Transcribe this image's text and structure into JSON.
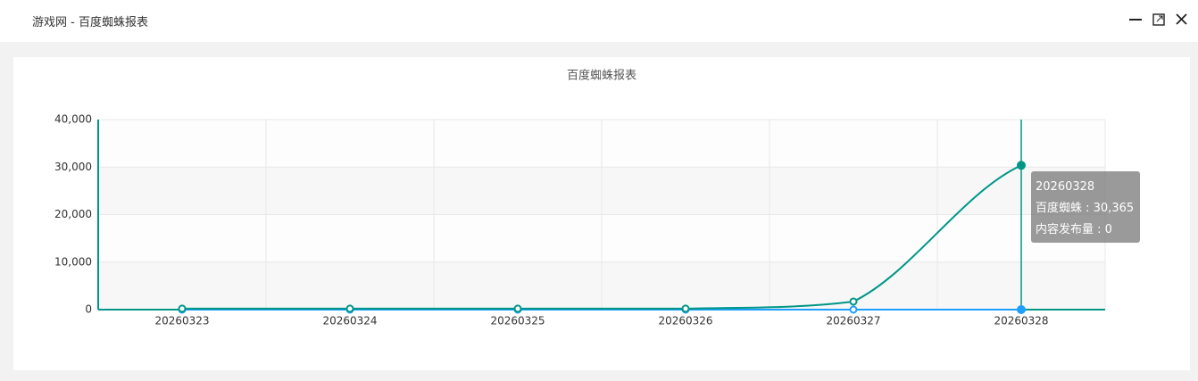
{
  "window": {
    "title": "游戏网 - 百度蜘蛛报表"
  },
  "chart_data": {
    "type": "line",
    "title": "百度蜘蛛报表",
    "smooth": true,
    "categories": [
      "20260323",
      "20260324",
      "20260325",
      "20260326",
      "20260327",
      "20260328"
    ],
    "series": [
      {
        "name": "百度蜘蛛",
        "color": "#009688",
        "values": [
          200,
          200,
          200,
          200,
          1700,
          30365
        ]
      },
      {
        "name": "内容发布量",
        "color": "#1e9fff",
        "values": [
          0,
          0,
          0,
          0,
          0,
          0
        ]
      }
    ],
    "ylim": [
      0,
      40000
    ],
    "yticks": [
      0,
      {
        "value": 10000,
        "label": "10,000"
      },
      {
        "value": 20000,
        "label": "20,000"
      },
      {
        "value": 30000,
        "label": "30,000"
      },
      {
        "value": 40000,
        "label": "40,000"
      }
    ],
    "grid": true,
    "tooltip": {
      "title": "20260328",
      "items": [
        "百度蜘蛛 : 30,365",
        "内容发布量 : 0"
      ]
    }
  }
}
